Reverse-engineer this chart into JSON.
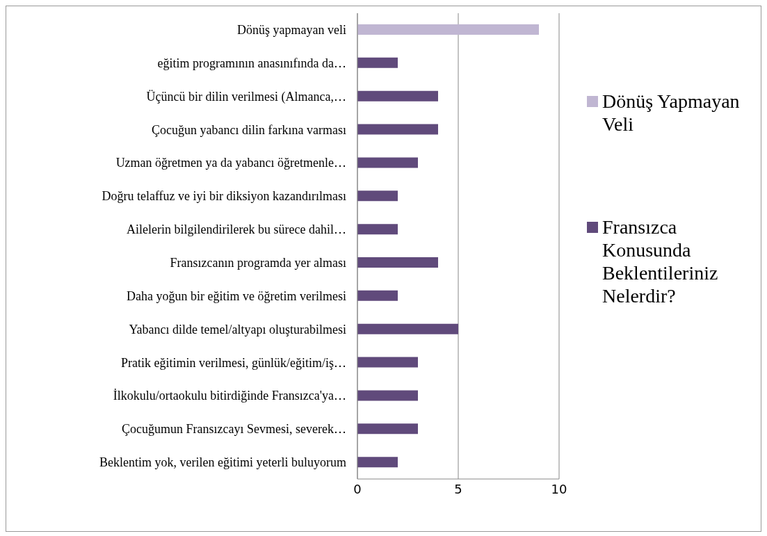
{
  "chart_data": {
    "type": "bar",
    "orientation": "horizontal",
    "stacked": true,
    "categories": [
      "Dönüş yapmayan veli",
      "eğitim programının anasınıfında da…",
      "Üçüncü bir dilin verilmesi (Almanca,…",
      "Çocuğun yabancı dilin farkına varması",
      "Uzman öğretmen ya da yabancı öğretmenle…",
      "Doğru telaffuz ve iyi bir diksiyon kazandırılması",
      "Ailelerin bilgilendirilerek bu sürece dahil…",
      "Fransızcanın programda yer alması",
      "Daha yoğun bir eğitim ve öğretim verilmesi",
      "Yabancı dilde temel/altyapı oluşturabilmesi",
      "Pratik eğitimin verilmesi, günlük/eğitim/iş…",
      "İlkokulu/ortaokulu bitirdiğinde Fransızca'ya…",
      "Çocuğumun Fransızcayı Sevmesi, severek…",
      "Beklentim yok, verilen eğitimi yeterli buluyorum"
    ],
    "series": [
      {
        "name": "Dönüş Yapmayan Veli",
        "color": "#c0b6d2",
        "values": [
          9,
          null,
          null,
          null,
          null,
          null,
          null,
          null,
          null,
          null,
          null,
          null,
          null,
          null
        ]
      },
      {
        "name": "Fransızca Konusunda Beklentileriniz Nelerdir?",
        "color": "#604a7b",
        "values": [
          null,
          2,
          4,
          4,
          3,
          2,
          2,
          4,
          2,
          5,
          3,
          3,
          3,
          2
        ]
      }
    ],
    "xlim": [
      0,
      10
    ],
    "xticks": [
      0,
      5,
      10
    ],
    "grid": "x",
    "legend": "right"
  }
}
